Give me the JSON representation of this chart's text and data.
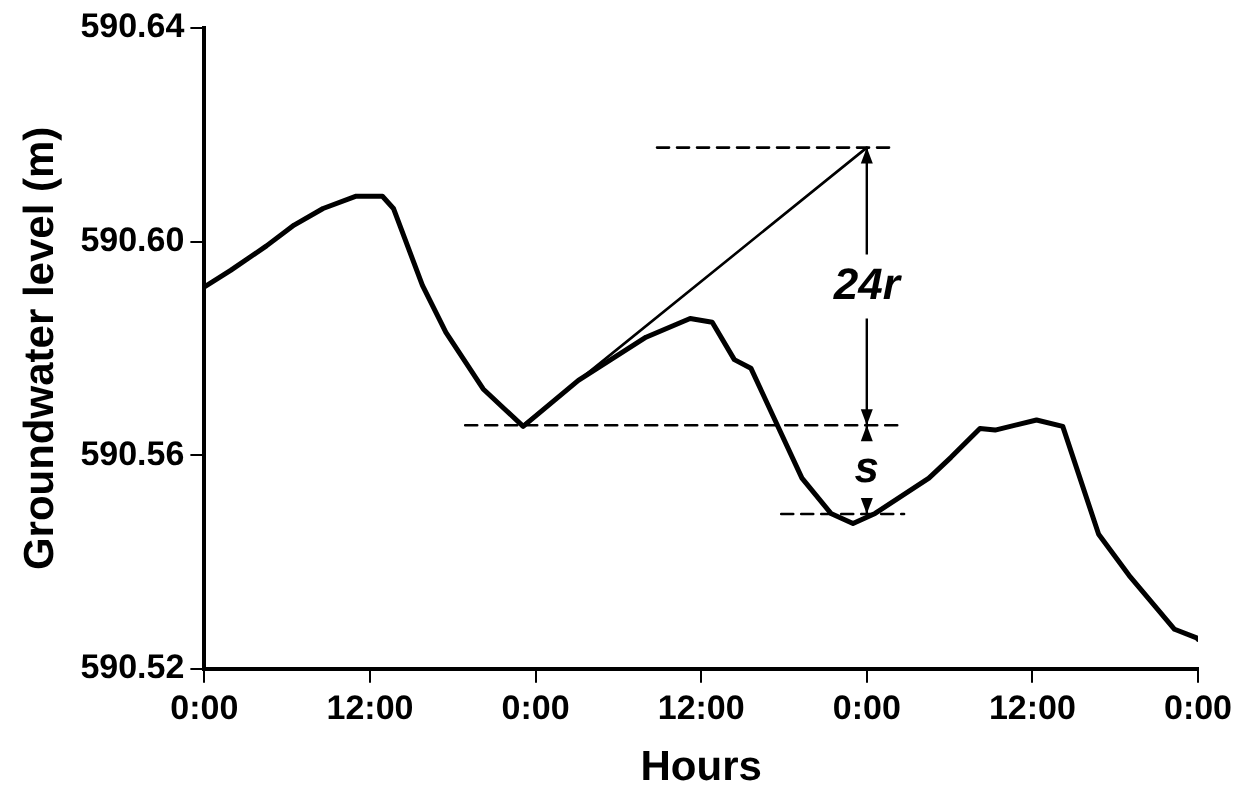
{
  "chart_data": {
    "type": "line",
    "xlabel": "Hours",
    "ylabel": "Groundwater level (m)",
    "xlim": [
      "--01-01T00:00",
      "--01-04T00:00"
    ],
    "xticks": [
      {
        "value": "--01-01T00:00",
        "label": "0:00"
      },
      {
        "value": "--01-01T12:00",
        "label": "12:00"
      },
      {
        "value": "--01-02T00:00",
        "label": "0:00"
      },
      {
        "value": "--01-02T12:00",
        "label": "12:00"
      },
      {
        "value": "--01-03T00:00",
        "label": "0:00"
      },
      {
        "value": "--01-03T12:00",
        "label": "12:00"
      },
      {
        "value": "--01-04T00:00",
        "label": "0:00"
      }
    ],
    "ylim": [
      590.52,
      590.64
    ],
    "yticks": [
      590.52,
      590.56,
      {
        "value": 590.6,
        "label": "590.60"
      },
      590.64
    ],
    "grid": false,
    "legend": false,
    "marker": "none",
    "series": [
      {
        "color": "#000000",
        "line_style": "solid",
        "x": [
          "--01-01T00:00",
          "--01-01T01:54",
          "--01-01T04:30",
          "--01-01T06:30",
          "--01-01T08:36",
          "--01-01T11:00",
          "--01-01T12:54",
          "--01-01T13:42",
          "--01-01T15:48",
          "--01-01T17:30",
          "--01-01T20:12",
          "--01-01T23:06",
          "--01-02T03:06",
          "--01-02T08:00",
          "--01-02T11:12",
          "--01-02T12:48",
          "--01-02T14:24",
          "--01-02T15:36",
          "--01-02T17:12",
          "--01-02T19:18",
          "--01-02T21:24",
          "--01-02T23:00",
          "--01-03T00:36",
          "--01-03T04:30",
          "--01-03T06:06",
          "--01-03T08:12",
          "--01-03T09:18",
          "--01-03T12:18",
          "--01-03T14:12",
          "--01-03T16:48",
          "--01-03T19:00",
          "--01-03T22:18",
          "--01-03T23:54",
          "--01-04T00:00"
        ],
        "values": [
          590.5915,
          590.5946,
          590.5992,
          590.6031,
          590.6062,
          590.6085,
          590.6085,
          590.6062,
          590.5918,
          590.583,
          590.5724,
          590.5654,
          590.574,
          590.5821,
          590.5856,
          590.5849,
          590.5779,
          590.5763,
          590.5674,
          590.5557,
          590.5491,
          590.5472,
          590.5491,
          590.5557,
          590.5596,
          590.565,
          590.5647,
          590.5666,
          590.5654,
          590.5452,
          590.5375,
          590.5274,
          590.5258,
          590.5255
        ]
      },
      {
        "color": "#000000",
        "line_style": "solid",
        "x": [
          "--01-01T23:00",
          "--01-03T00:00"
        ],
        "values": [
          590.5654,
          590.6176
        ]
      },
      {
        "color": "#000000",
        "line_style": "dashed",
        "x": [
          "--01-02T08:48",
          "--01-03T01:48"
        ],
        "values": [
          590.6176,
          590.6176
        ]
      },
      {
        "color": "#000000",
        "line_style": "dashed",
        "x": [
          "--01-01T18:54",
          "--01-03T02:36"
        ],
        "values": [
          590.5656,
          590.5656
        ]
      },
      {
        "color": "#000000",
        "line_style": "dashed",
        "x": [
          "--01-02T17:48",
          "--01-03T02:42"
        ],
        "values": [
          590.549,
          590.549
        ]
      }
    ],
    "annotations": [
      {
        "text": "24r",
        "x": "--01-03T00:00",
        "y": 590.6176
      },
      {
        "text": "s",
        "x": "--01-03T00:00",
        "y": 590.5656
      }
    ]
  }
}
